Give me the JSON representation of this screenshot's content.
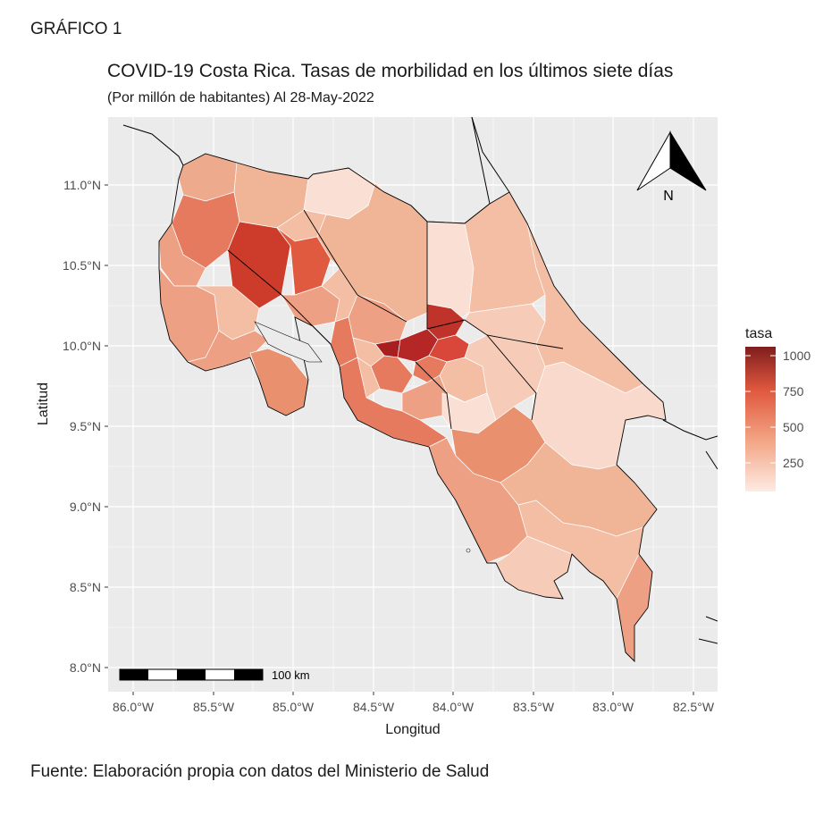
{
  "figure_label": "GRÁFICO 1",
  "title": "COVID-19 Costa Rica. Tasas de morbilidad en los últimos siete días",
  "subtitle": "(Por millón de habitantes) Al 28-May-2022",
  "source": "Fuente: Elaboración propia con datos del Ministerio de Salud",
  "map": {
    "xlabel": "Longitud",
    "ylabel": "Latitud",
    "x_ticks": [
      "86.0°W",
      "85.5°W",
      "85.0°W",
      "84.5°W",
      "84.0°W",
      "83.5°W",
      "83.0°W",
      "82.5°W"
    ],
    "y_ticks": [
      "8.0°N",
      "8.5°N",
      "9.0°N",
      "9.5°N",
      "10.0°N",
      "10.5°N",
      "11.0°N"
    ],
    "xlim": [
      -86.15,
      -82.35
    ],
    "ylim": [
      7.9,
      11.4
    ],
    "north_arrow_label": "N",
    "scale_bar_label": "100 km",
    "legend": {
      "title": "tasa",
      "ticks": [
        "1000",
        "750",
        "500",
        "250"
      ],
      "color_low": "#fdebe3",
      "color_high": "#7f1d1d"
    }
  }
}
